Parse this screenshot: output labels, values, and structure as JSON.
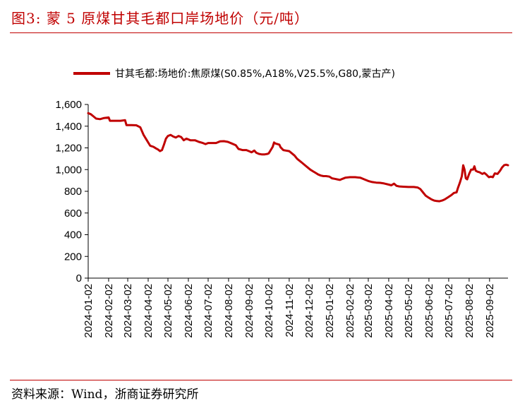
{
  "header": {
    "title": "图3:   蒙 5 原煤甘其毛都口岸场地价（元/吨）"
  },
  "footer": {
    "source": "资料来源：Wind，浙商证券研究所"
  },
  "colors": {
    "title": "#c00000",
    "series": "#c00000",
    "axis": "#000000"
  },
  "chart_data": {
    "type": "line",
    "title": "蒙 5 原煤甘其毛都口岸场地价（元/吨）",
    "ylim": [
      0,
      1600
    ],
    "yticks": [
      0,
      200,
      400,
      600,
      800,
      1000,
      1200,
      1400,
      1600
    ],
    "ytick_labels": [
      "0",
      "200",
      "400",
      "600",
      "800",
      "1,000",
      "1,200",
      "1,400",
      "1,600"
    ],
    "xlim": [
      "2024-01-02",
      "2025-09-30"
    ],
    "xtick_labels": [
      "2024-01-02",
      "2024-02-02",
      "2024-03-02",
      "2024-04-02",
      "2024-05-02",
      "2024-06-02",
      "2024-07-02",
      "2024-08-02",
      "2024-09-02",
      "2024-10-02",
      "2024-11-02",
      "2024-12-02",
      "2025-01-02",
      "2025-02-02",
      "2025-03-02",
      "2025-04-02",
      "2025-05-02",
      "2025-06-02",
      "2025-07-02",
      "2025-08-02",
      "2025-09-02"
    ],
    "grid": false,
    "legend_position": "top-center",
    "series": [
      {
        "name": "甘其毛都:场地价:焦原煤(S0.85%,A18%,V25.5%,G80,蒙古产)",
        "color": "#c00000",
        "points": [
          [
            "2024-01-02",
            1520
          ],
          [
            "2024-01-06",
            1510
          ],
          [
            "2024-01-10",
            1490
          ],
          [
            "2024-01-14",
            1470
          ],
          [
            "2024-01-20",
            1465
          ],
          [
            "2024-01-26",
            1475
          ],
          [
            "2024-02-02",
            1480
          ],
          [
            "2024-02-04",
            1450
          ],
          [
            "2024-02-12",
            1450
          ],
          [
            "2024-02-20",
            1450
          ],
          [
            "2024-02-27",
            1455
          ],
          [
            "2024-02-29",
            1410
          ],
          [
            "2024-03-08",
            1410
          ],
          [
            "2024-03-15",
            1408
          ],
          [
            "2024-03-21",
            1390
          ],
          [
            "2024-03-26",
            1320
          ],
          [
            "2024-03-31",
            1270
          ],
          [
            "2024-04-05",
            1220
          ],
          [
            "2024-04-10",
            1210
          ],
          [
            "2024-04-14",
            1195
          ],
          [
            "2024-04-17",
            1185
          ],
          [
            "2024-04-20",
            1170
          ],
          [
            "2024-04-23",
            1180
          ],
          [
            "2024-04-26",
            1230
          ],
          [
            "2024-04-29",
            1285
          ],
          [
            "2024-05-02",
            1310
          ],
          [
            "2024-05-06",
            1320
          ],
          [
            "2024-05-10",
            1305
          ],
          [
            "2024-05-14",
            1295
          ],
          [
            "2024-05-18",
            1310
          ],
          [
            "2024-05-22",
            1300
          ],
          [
            "2024-05-26",
            1270
          ],
          [
            "2024-05-30",
            1285
          ],
          [
            "2024-06-05",
            1270
          ],
          [
            "2024-06-12",
            1270
          ],
          [
            "2024-06-18",
            1255
          ],
          [
            "2024-06-24",
            1245
          ],
          [
            "2024-06-28",
            1235
          ],
          [
            "2024-07-02",
            1245
          ],
          [
            "2024-07-08",
            1245
          ],
          [
            "2024-07-14",
            1245
          ],
          [
            "2024-07-20",
            1260
          ],
          [
            "2024-07-26",
            1262
          ],
          [
            "2024-08-01",
            1255
          ],
          [
            "2024-08-07",
            1240
          ],
          [
            "2024-08-13",
            1225
          ],
          [
            "2024-08-17",
            1190
          ],
          [
            "2024-08-23",
            1180
          ],
          [
            "2024-08-29",
            1180
          ],
          [
            "2024-09-02",
            1170
          ],
          [
            "2024-09-06",
            1160
          ],
          [
            "2024-09-10",
            1175
          ],
          [
            "2024-09-13",
            1155
          ],
          [
            "2024-09-17",
            1145
          ],
          [
            "2024-09-21",
            1140
          ],
          [
            "2024-09-26",
            1140
          ],
          [
            "2024-09-30",
            1145
          ],
          [
            "2024-10-02",
            1150
          ],
          [
            "2024-10-05",
            1180
          ],
          [
            "2024-10-08",
            1210
          ],
          [
            "2024-10-10",
            1250
          ],
          [
            "2024-10-12",
            1240
          ],
          [
            "2024-10-15",
            1235
          ],
          [
            "2024-10-18",
            1230
          ],
          [
            "2024-10-20",
            1205
          ],
          [
            "2024-10-24",
            1180
          ],
          [
            "2024-10-28",
            1175
          ],
          [
            "2024-11-02",
            1170
          ],
          [
            "2024-11-06",
            1150
          ],
          [
            "2024-11-10",
            1130
          ],
          [
            "2024-11-14",
            1100
          ],
          [
            "2024-11-18",
            1080
          ],
          [
            "2024-11-22",
            1060
          ],
          [
            "2024-11-26",
            1040
          ],
          [
            "2024-11-30",
            1020
          ],
          [
            "2024-12-04",
            1000
          ],
          [
            "2024-12-08",
            985
          ],
          [
            "2024-12-12",
            970
          ],
          [
            "2024-12-16",
            955
          ],
          [
            "2024-12-20",
            945
          ],
          [
            "2024-12-24",
            940
          ],
          [
            "2024-12-28",
            940
          ],
          [
            "2025-01-02",
            935
          ],
          [
            "2025-01-06",
            920
          ],
          [
            "2025-01-10",
            915
          ],
          [
            "2025-01-14",
            910
          ],
          [
            "2025-01-18",
            905
          ],
          [
            "2025-01-22",
            915
          ],
          [
            "2025-01-26",
            925
          ],
          [
            "2025-02-02",
            930
          ],
          [
            "2025-02-10",
            930
          ],
          [
            "2025-02-18",
            925
          ],
          [
            "2025-02-24",
            910
          ],
          [
            "2025-03-02",
            895
          ],
          [
            "2025-03-08",
            885
          ],
          [
            "2025-03-14",
            880
          ],
          [
            "2025-03-20",
            878
          ],
          [
            "2025-03-26",
            872
          ],
          [
            "2025-04-02",
            862
          ],
          [
            "2025-04-06",
            855
          ],
          [
            "2025-04-10",
            870
          ],
          [
            "2025-04-14",
            850
          ],
          [
            "2025-04-18",
            845
          ],
          [
            "2025-04-24",
            842
          ],
          [
            "2025-05-02",
            840
          ],
          [
            "2025-05-10",
            840
          ],
          [
            "2025-05-16",
            835
          ],
          [
            "2025-05-20",
            820
          ],
          [
            "2025-05-24",
            790
          ],
          [
            "2025-05-28",
            760
          ],
          [
            "2025-06-02",
            740
          ],
          [
            "2025-06-06",
            725
          ],
          [
            "2025-06-10",
            715
          ],
          [
            "2025-06-14",
            710
          ],
          [
            "2025-06-18",
            708
          ],
          [
            "2025-06-22",
            715
          ],
          [
            "2025-06-26",
            725
          ],
          [
            "2025-07-01",
            745
          ],
          [
            "2025-07-06",
            765
          ],
          [
            "2025-07-10",
            785
          ],
          [
            "2025-07-14",
            790
          ],
          [
            "2025-07-16",
            830
          ],
          [
            "2025-07-19",
            880
          ],
          [
            "2025-07-22",
            940
          ],
          [
            "2025-07-24",
            1040
          ],
          [
            "2025-07-26",
            1000
          ],
          [
            "2025-07-28",
            920
          ],
          [
            "2025-07-30",
            910
          ],
          [
            "2025-08-02",
            960
          ],
          [
            "2025-08-05",
            1000
          ],
          [
            "2025-08-08",
            1000
          ],
          [
            "2025-08-10",
            1030
          ],
          [
            "2025-08-12",
            990
          ],
          [
            "2025-08-15",
            980
          ],
          [
            "2025-08-18",
            975
          ],
          [
            "2025-08-22",
            960
          ],
          [
            "2025-08-25",
            970
          ],
          [
            "2025-08-28",
            955
          ],
          [
            "2025-09-01",
            930
          ],
          [
            "2025-09-04",
            935
          ],
          [
            "2025-09-07",
            930
          ],
          [
            "2025-09-10",
            965
          ],
          [
            "2025-09-14",
            960
          ],
          [
            "2025-09-18",
            990
          ],
          [
            "2025-09-21",
            1020
          ],
          [
            "2025-09-24",
            1040
          ],
          [
            "2025-09-27",
            1045
          ],
          [
            "2025-09-30",
            1040
          ]
        ]
      }
    ]
  }
}
